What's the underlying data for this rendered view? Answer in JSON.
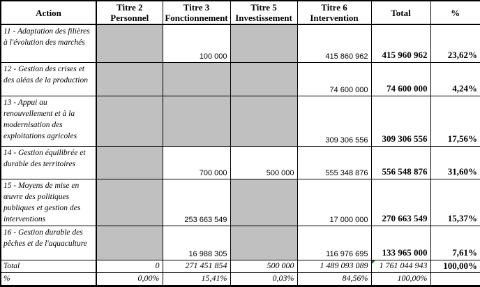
{
  "colors": {
    "cell_gray": "#c0c0c0",
    "border": "#000000",
    "error_indicator_green": "#1e7c1e"
  },
  "header": {
    "action": "Action",
    "t2_line1": "Titre 2",
    "t2_line2": "Personnel",
    "t3_line1": "Titre 3",
    "t3_line2": "Fonctionnement",
    "t5_line1": "Titre 5",
    "t5_line2": "Investissement",
    "t6_line1": "Titre 6",
    "t6_line2": "Intervention",
    "total": "Total",
    "pct": "%"
  },
  "rows": [
    {
      "action": "11 - Adaptation des filières à l'évolution des marchés",
      "t2": "",
      "t3": "100 000",
      "t5": "",
      "t6": "415 860 962",
      "total": "415 960 962",
      "pct": "23,62%"
    },
    {
      "action": "12 - Gestion des crises et des aléas de la production",
      "t2": "",
      "t3": "",
      "t5": "",
      "t6": "74 600 000",
      "total": "74 600 000",
      "pct": "4,24%"
    },
    {
      "action": "13 - Appui au renouvellement et à la modernisation des exploitations agricoles",
      "t2": "",
      "t3": "",
      "t5": "",
      "t6": "309 306 556",
      "total": "309 306 556",
      "pct": "17,56%"
    },
    {
      "action": "14 - Gestion équilibrée et durable des territoires",
      "t2": "",
      "t3": "700 000",
      "t5": "500 000",
      "t6": "555 348 876",
      "total": "556 548 876",
      "pct": "31,60%"
    },
    {
      "action": "15 - Moyens de mise en œuvre des politiques publiques et gestion des interventions",
      "t2": "",
      "t3": "253 663 549",
      "t5": "",
      "t6": "17 000 000",
      "total": "270 663 549",
      "pct": "15,37%"
    },
    {
      "action": "16 - Gestion durable des pêches et de l'aquaculture",
      "t2": "",
      "t3": "16 988 305",
      "t5": "",
      "t6": "116 976 695",
      "total": "133 965 000",
      "pct": "7,61%"
    }
  ],
  "total_row": {
    "action": "Total",
    "t2": "0",
    "t3": "271 451 854",
    "t5": "500 000",
    "t6": "1 489 093 089",
    "total": "1 761 044 943",
    "pct": "100,00%"
  },
  "pct_row": {
    "action": "%",
    "t2": "0,00%",
    "t3": "15,41%",
    "t5": "0,03%",
    "t6": "84,56%",
    "total": "100,00%",
    "pct": ""
  }
}
